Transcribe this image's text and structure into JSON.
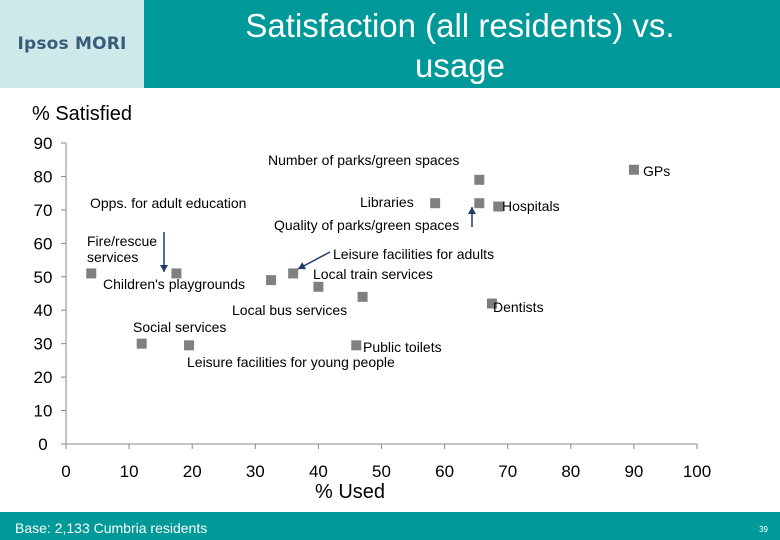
{
  "header": {
    "logo": "Ipsos MORI",
    "title_line1": "Satisfaction (all residents) vs.",
    "title_line2": "usage"
  },
  "footer": {
    "base": "Base: 2,133 Cumbria residents",
    "page_number": "39"
  },
  "colors": {
    "header_bar": "#009999",
    "logo_bg": "#cde9e9",
    "marker": "#808080",
    "arrow": "#1f3a6b"
  },
  "chart_data": {
    "type": "scatter",
    "title": "",
    "xlabel": "% Used",
    "ylabel": "% Satisfied",
    "xlim": [
      0,
      100
    ],
    "ylim": [
      0,
      90
    ],
    "xticks": [
      0,
      10,
      20,
      30,
      40,
      50,
      60,
      70,
      80,
      90,
      100
    ],
    "yticks": [
      0,
      10,
      20,
      30,
      40,
      50,
      60,
      70,
      80,
      90
    ],
    "grid": false,
    "points": [
      {
        "label": "Fire/rescue services",
        "x": 4,
        "y": 51
      },
      {
        "label": "Opps. for adult education",
        "x": 17.5,
        "y": 51
      },
      {
        "label": "Children's playgrounds",
        "x": 32.5,
        "y": 49
      },
      {
        "label": "Local bus services",
        "x": 36,
        "y": 51
      },
      {
        "label": "Leisure facilities for adults",
        "x": 40,
        "y": 47
      },
      {
        "label": "Local train services",
        "x": 47,
        "y": 44
      },
      {
        "label": "Libraries",
        "x": 58.5,
        "y": 72
      },
      {
        "label": "Number of parks/green spaces",
        "x": 65.5,
        "y": 79
      },
      {
        "label": "Quality of parks/green spaces",
        "x": 65.5,
        "y": 72
      },
      {
        "label": "Hospitals",
        "x": 68.5,
        "y": 71
      },
      {
        "label": "GPs",
        "x": 90,
        "y": 82
      },
      {
        "label": "Dentists",
        "x": 67.5,
        "y": 42
      },
      {
        "label": "Social services",
        "x": 12,
        "y": 30
      },
      {
        "label": "Leisure facilities for young people",
        "x": 19.5,
        "y": 29.5
      },
      {
        "label": "Public toilets",
        "x": 46,
        "y": 29.5
      }
    ],
    "annotations": [
      {
        "text": "Number of parks/green spaces"
      },
      {
        "text": "GPs"
      },
      {
        "text": "Opps. for adult education"
      },
      {
        "text": "Libraries"
      },
      {
        "text": "Hospitals"
      },
      {
        "text": "Quality of parks/green spaces"
      },
      {
        "text": "Fire/rescue"
      },
      {
        "text": "services"
      },
      {
        "text": "Leisure facilities for adults"
      },
      {
        "text": "Local train services"
      },
      {
        "text": "Children's playgrounds"
      },
      {
        "text": "Dentists"
      },
      {
        "text": "Local bus services"
      },
      {
        "text": "Social services"
      },
      {
        "text": "Public toilets"
      },
      {
        "text": "Leisure facilities for young people"
      }
    ]
  }
}
